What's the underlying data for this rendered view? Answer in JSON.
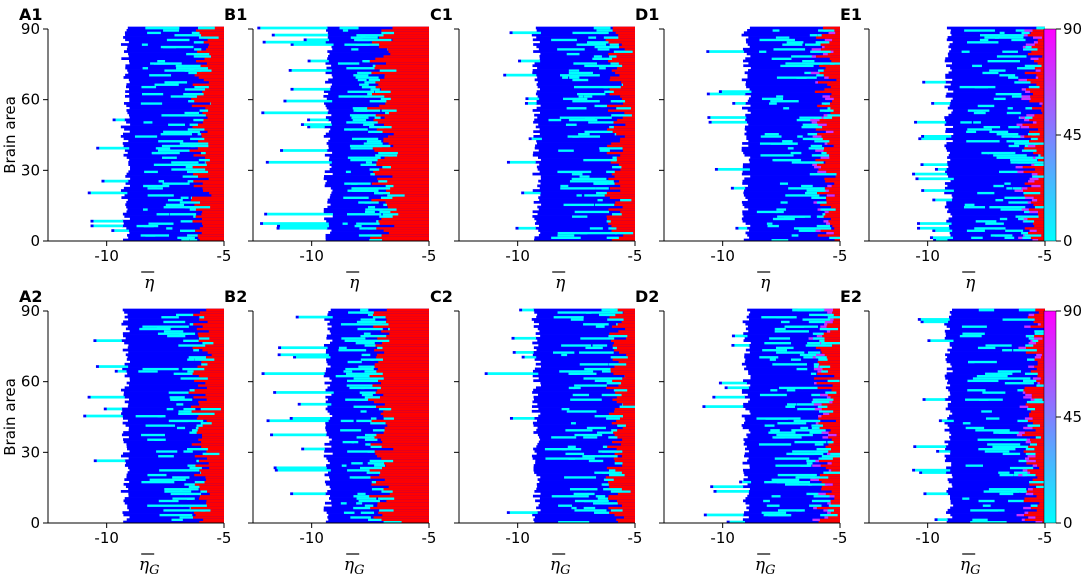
{
  "chart_data": {
    "type": "heatmap",
    "description_free": true,
    "y_label": "Brain area",
    "y_range": [
      0,
      90
    ],
    "y_ticks": [
      "0",
      "30",
      "60",
      "90"
    ],
    "x_range": [
      -12.5,
      -5
    ],
    "x_ticks": [
      "-10",
      "-5"
    ],
    "x_tick_values": [
      -10,
      -5
    ],
    "colorbar": {
      "range": [
        0,
        90
      ],
      "ticks": [
        "0",
        "45",
        "90"
      ],
      "colors": [
        "#00ffff",
        "#ff00ff"
      ]
    },
    "category_colors": {
      "background": "#ffffff",
      "low": "#0000ff",
      "mid": "#00ffff",
      "high": "#ff0000"
    },
    "rows": [
      {
        "row_label": "1",
        "xlabel_main": "η",
        "xlabel_sub": "",
        "panels": [
          {
            "label": "A1",
            "seed": 11,
            "blue_edge": -9.2,
            "red_edge": -5.9,
            "cyan_prob": 0.35,
            "spread": 0.6
          },
          {
            "label": "B1",
            "seed": 23,
            "blue_edge": -9.3,
            "red_edge": -6.8,
            "cyan_prob": 0.45,
            "spread": 1.2
          },
          {
            "label": "C1",
            "seed": 37,
            "blue_edge": -9.2,
            "red_edge": -5.7,
            "cyan_prob": 0.35,
            "spread": 0.6
          },
          {
            "label": "D1",
            "seed": 41,
            "blue_edge": -9.0,
            "red_edge": -5.5,
            "cyan_prob": 0.4,
            "spread": 0.6
          },
          {
            "label": "E1",
            "seed": 53,
            "blue_edge": -9.1,
            "red_edge": -5.4,
            "cyan_prob": 0.4,
            "spread": 0.6
          }
        ]
      },
      {
        "row_label": "2",
        "xlabel_main": "η",
        "xlabel_sub": "G",
        "panels": [
          {
            "label": "A2",
            "seed": 61,
            "blue_edge": -9.2,
            "red_edge": -5.9,
            "cyan_prob": 0.35,
            "spread": 0.6
          },
          {
            "label": "B2",
            "seed": 73,
            "blue_edge": -9.3,
            "red_edge": -6.8,
            "cyan_prob": 0.45,
            "spread": 1.2
          },
          {
            "label": "C2",
            "seed": 89,
            "blue_edge": -9.2,
            "red_edge": -5.7,
            "cyan_prob": 0.35,
            "spread": 0.6
          },
          {
            "label": "D2",
            "seed": 97,
            "blue_edge": -9.0,
            "red_edge": -5.5,
            "cyan_prob": 0.4,
            "spread": 0.6
          },
          {
            "label": "E2",
            "seed": 101,
            "blue_edge": -9.1,
            "red_edge": -5.4,
            "cyan_prob": 0.4,
            "spread": 0.6
          }
        ]
      }
    ]
  }
}
